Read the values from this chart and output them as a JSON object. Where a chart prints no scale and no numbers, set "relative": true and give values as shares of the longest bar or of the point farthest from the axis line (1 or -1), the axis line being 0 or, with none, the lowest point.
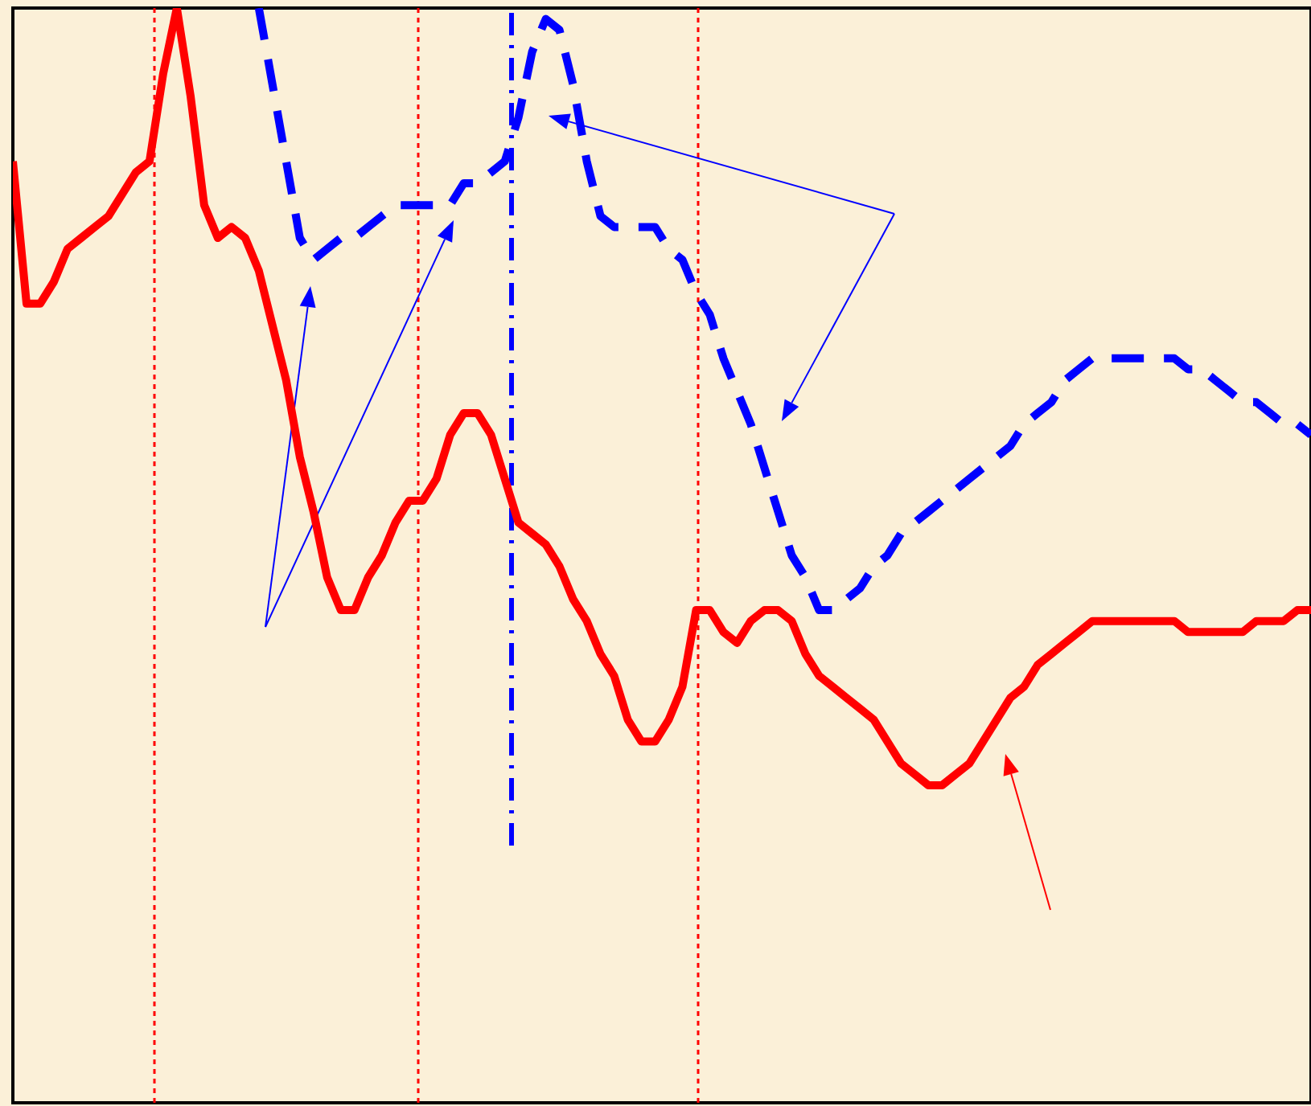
{
  "chart_data": {
    "type": "line",
    "relative": true,
    "marker": "none",
    "categories": [
      null,
      null,
      null,
      null,
      null,
      null,
      null,
      null,
      null,
      null,
      null,
      null,
      null,
      null,
      null,
      null,
      null,
      null,
      null,
      null,
      null,
      null,
      null,
      null,
      null,
      null,
      null,
      null,
      null,
      null,
      null,
      null,
      null,
      null,
      null,
      null,
      null,
      null,
      null,
      null,
      null,
      null,
      null,
      null,
      null,
      null,
      null,
      null,
      null,
      null,
      null,
      null,
      null,
      null,
      null,
      null,
      null,
      null,
      null,
      null,
      null,
      null,
      null,
      null,
      null,
      null,
      null,
      null,
      null,
      null,
      null,
      null,
      null,
      null,
      null,
      null,
      null,
      null,
      null,
      null,
      null,
      null,
      null,
      null,
      null,
      null,
      null,
      null,
      null,
      null,
      null,
      null,
      null,
      null,
      null,
      null
    ],
    "series": [
      {
        "color": "#ff0000",
        "line_style": "solid",
        "values": [
          0.86,
          0.73,
          0.73,
          0.75,
          0.78,
          0.79,
          0.8,
          0.81,
          0.83,
          0.85,
          0.86,
          0.94,
          1,
          0.92,
          0.82,
          0.79,
          0.8,
          0.79,
          0.76,
          0.71,
          0.66,
          0.59,
          0.54,
          0.48,
          0.45,
          0.45,
          0.48,
          0.5,
          0.53,
          0.55,
          0.55,
          0.57,
          0.61,
          0.63,
          0.63,
          0.61,
          0.57,
          0.53,
          0.52,
          0.51,
          0.49,
          0.46,
          0.44,
          0.41,
          0.39,
          0.35,
          0.33,
          0.33,
          0.35,
          0.38,
          0.45,
          0.45,
          0.43,
          0.42,
          0.44,
          0.45,
          0.45,
          0.44,
          0.41,
          0.39,
          0.38,
          0.37,
          0.36,
          0.35,
          0.33,
          0.31,
          0.3,
          0.29,
          0.29,
          0.3,
          0.31,
          0.33,
          0.35,
          0.37,
          0.38,
          0.4,
          0.41,
          0.42,
          0.43,
          0.44,
          0.44,
          0.44,
          0.44,
          0.44,
          0.44,
          0.44,
          0.43,
          0.43,
          0.43,
          0.43,
          0.43,
          0.44,
          0.44,
          0.44,
          0.45,
          0.45
        ]
      },
      {
        "color": "#0000ff",
        "line_style": "dashed",
        "values": [
          null,
          null,
          null,
          null,
          null,
          null,
          null,
          null,
          null,
          null,
          null,
          null,
          null,
          null,
          null,
          null,
          null,
          null,
          1,
          0.93,
          0.86,
          0.79,
          0.77,
          0.78,
          0.79,
          0.79,
          0.8,
          0.81,
          0.82,
          0.82,
          0.82,
          0.82,
          0.82,
          0.84,
          0.84,
          0.85,
          0.86,
          0.9,
          0.96,
          0.99,
          0.98,
          0.93,
          0.86,
          0.81,
          0.8,
          0.8,
          0.8,
          0.8,
          0.78,
          0.77,
          0.74,
          0.72,
          0.68,
          0.65,
          0.62,
          0.58,
          0.54,
          0.5,
          0.48,
          0.45,
          0.45,
          0.46,
          0.47,
          0.49,
          0.5,
          0.52,
          0.53,
          0.54,
          0.55,
          0.56,
          0.57,
          0.58,
          0.59,
          0.6,
          0.62,
          0.63,
          0.64,
          0.66,
          0.67,
          0.68,
          0.68,
          0.68,
          0.68,
          0.68,
          0.68,
          0.68,
          0.67,
          0.67,
          0.66,
          0.65,
          0.64,
          0.64,
          0.63,
          0.62,
          0.62,
          0.61
        ]
      }
    ]
  }
}
